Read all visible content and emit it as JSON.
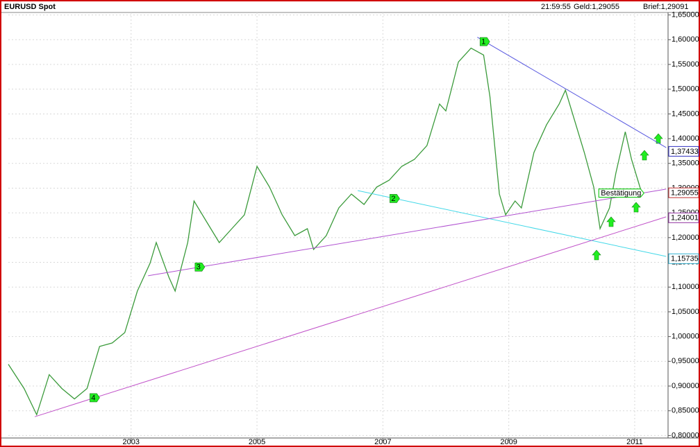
{
  "chart_data": {
    "type": "line",
    "title": "EURUSD Spot",
    "info": [
      "21:59:55",
      "Geld:1,29055",
      "Brief:1,29091"
    ],
    "color": "#3a9a3a",
    "x": [
      2001.05,
      2001.3,
      2001.5,
      2001.7,
      2001.9,
      2002.1,
      2002.3,
      2002.5,
      2002.7,
      2002.9,
      2003.1,
      2003.3,
      2003.4,
      2003.6,
      2003.7,
      2003.9,
      2004.0,
      2004.2,
      2004.4,
      2004.6,
      2004.8,
      2005.0,
      2005.2,
      2005.4,
      2005.6,
      2005.8,
      2005.9,
      2006.1,
      2006.3,
      2006.5,
      2006.7,
      2006.9,
      2007.1,
      2007.3,
      2007.5,
      2007.7,
      2007.9,
      2008.0,
      2008.2,
      2008.4,
      2008.6,
      2008.7,
      2008.85,
      2008.95,
      2009.1,
      2009.2,
      2009.4,
      2009.6,
      2009.8,
      2009.9,
      2010.0,
      2010.2,
      2010.35,
      2010.45,
      2010.6,
      2010.7,
      2010.85,
      2010.95,
      2011.05,
      2011.1
    ],
    "values": [
      0.944,
      0.895,
      0.842,
      0.923,
      0.895,
      0.874,
      0.895,
      0.98,
      0.987,
      1.008,
      1.092,
      1.148,
      1.19,
      1.12,
      1.092,
      1.19,
      1.274,
      1.232,
      1.19,
      1.218,
      1.246,
      1.344,
      1.302,
      1.246,
      1.204,
      1.218,
      1.176,
      1.204,
      1.26,
      1.288,
      1.267,
      1.302,
      1.316,
      1.344,
      1.358,
      1.386,
      1.47,
      1.456,
      1.555,
      1.583,
      1.569,
      1.485,
      1.288,
      1.246,
      1.274,
      1.26,
      1.372,
      1.428,
      1.47,
      1.498,
      1.456,
      1.372,
      1.302,
      1.218,
      1.26,
      1.33,
      1.414,
      1.358,
      1.316,
      1.295
    ],
    "xlim": [
      2001.05,
      2011.53
    ],
    "xticks": [
      2003,
      2005,
      2007,
      2009,
      2011
    ],
    "ylim": [
      0.795,
      1.655
    ],
    "yticks": [
      {
        "value": 0.8,
        "label": "0,80000"
      },
      {
        "value": 0.85,
        "label": "0,85000"
      },
      {
        "value": 0.9,
        "label": "0,90000"
      },
      {
        "value": 0.95,
        "label": "0,95000"
      },
      {
        "value": 1.0,
        "label": "1,00000"
      },
      {
        "value": 1.05,
        "label": "1,05000"
      },
      {
        "value": 1.1,
        "label": "1,10000"
      },
      {
        "value": 1.15,
        "label": "1,15000"
      },
      {
        "value": 1.2,
        "label": "1,20000"
      },
      {
        "value": 1.25,
        "label": "1,25000"
      },
      {
        "value": 1.3,
        "label": "1,30000"
      },
      {
        "value": 1.35,
        "label": "1,35000"
      },
      {
        "value": 1.4,
        "label": "1,40000"
      },
      {
        "value": 1.45,
        "label": "1,45000"
      },
      {
        "value": 1.5,
        "label": "1,50000"
      },
      {
        "value": 1.55,
        "label": "1,55000"
      },
      {
        "value": 1.6,
        "label": "1,60000"
      },
      {
        "value": 1.65,
        "label": "1,65000"
      }
    ],
    "grid": true,
    "trendlines": [
      {
        "label": "1",
        "color": "#5a5ae0",
        "x": [
          2008.5,
          2011.5
        ],
        "y": [
          1.605,
          1.382
        ]
      },
      {
        "label": "2",
        "color": "#40d8e8",
        "x": [
          2006.6,
          2011.5
        ],
        "y": [
          1.295,
          1.162
        ]
      },
      {
        "label": "3",
        "color": "#b050d0",
        "x": [
          2003.27,
          2011.5
        ],
        "y": [
          1.123,
          1.298
        ]
      },
      {
        "label": "4",
        "color": "#c050c8",
        "x": [
          2001.47,
          2011.5
        ],
        "y": [
          0.838,
          1.242
        ]
      }
    ],
    "annotation": {
      "label": "Bestätigung",
      "x": 2010.43,
      "y": 1.29
    },
    "price_labels": [
      {
        "value": 1.37433,
        "label": "1,37433",
        "color": "#3030c0"
      },
      {
        "value": 1.29055,
        "label": "1,29055",
        "color": "#c03030"
      },
      {
        "value": 1.24001,
        "label": "1,24001",
        "color": "#9030a0"
      },
      {
        "value": 1.15735,
        "label": "1,15735",
        "color": "#30b0d0"
      }
    ]
  }
}
